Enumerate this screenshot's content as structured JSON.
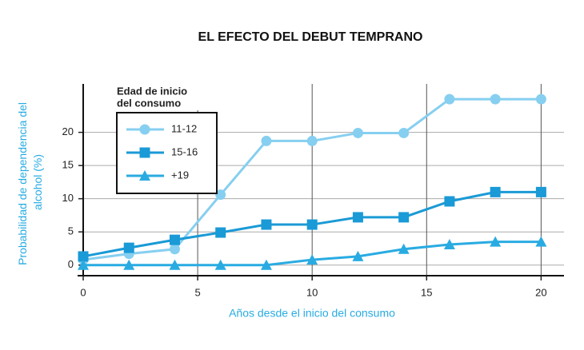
{
  "chart_data": {
    "type": "line",
    "title": "EL EFECTO DEL DEBUT TEMPRANO",
    "x_label": "Años desde el inicio del consumo",
    "y_label": "Probabilidad de dependencia del alcohol (%)",
    "legend_title": [
      "Edad de inicio",
      "del consumo"
    ],
    "x": [
      0,
      2,
      4,
      6,
      8,
      10,
      12,
      14,
      16,
      18,
      20
    ],
    "series": [
      {
        "name": "11-12",
        "color": "#86cff0",
        "marker": "circle",
        "values": [
          0.8,
          1.7,
          2.4,
          10.6,
          18.7,
          18.7,
          19.9,
          19.9,
          25,
          25,
          25
        ]
      },
      {
        "name": "15-16",
        "color": "#1a9ad6",
        "marker": "square",
        "values": [
          1.3,
          2.6,
          3.8,
          4.9,
          6.1,
          6.1,
          7.2,
          7.2,
          9.6,
          11,
          11
        ]
      },
      {
        "name": "+19",
        "color": "#29abe2",
        "marker": "triangle",
        "values": [
          0,
          0,
          0,
          0,
          0,
          0.8,
          1.3,
          2.4,
          3.1,
          3.5,
          3.5
        ]
      }
    ],
    "xlim": [
      0,
      21
    ],
    "ylim": [
      -1.6,
      27.3
    ],
    "xticks": [
      0,
      5,
      10,
      15,
      20
    ],
    "yticks": [
      0,
      5,
      10,
      15,
      20
    ],
    "grid": true
  }
}
